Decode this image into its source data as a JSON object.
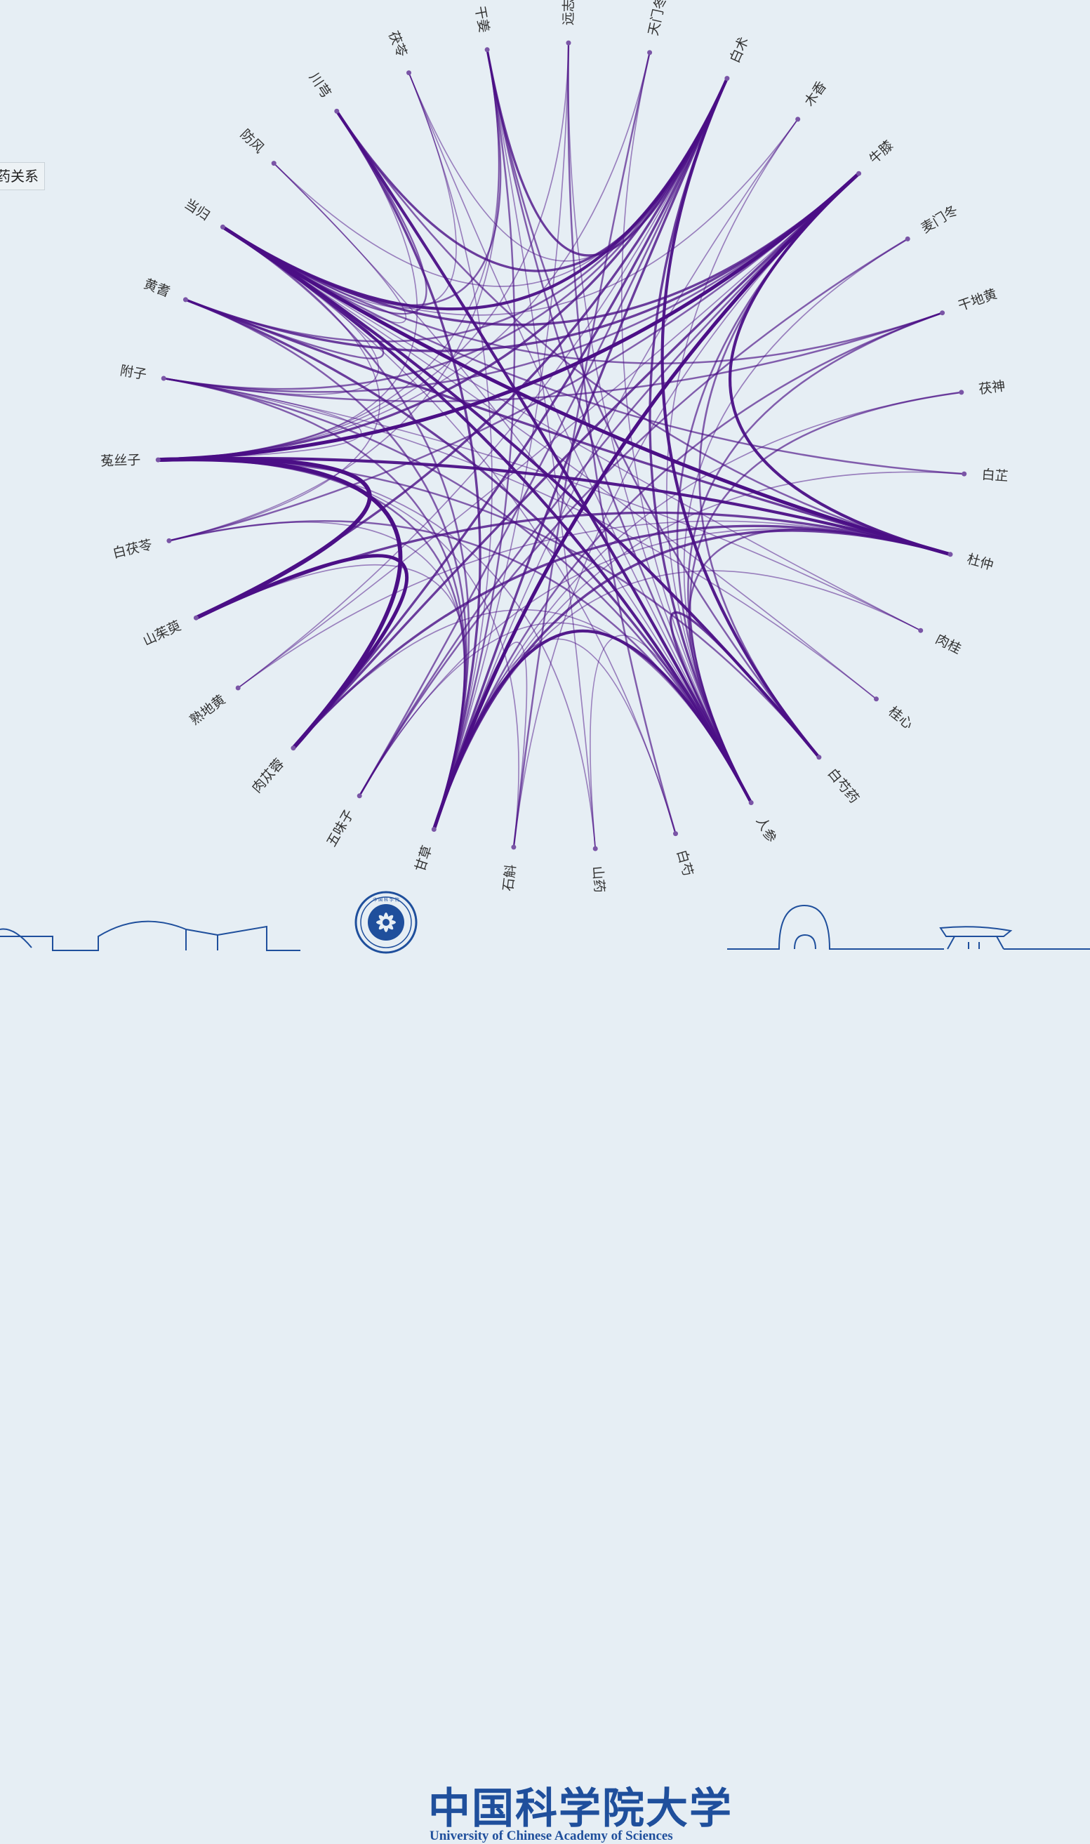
{
  "legend": {
    "label": "药关系"
  },
  "diagram": {
    "type": "chord-network",
    "link_color": "#4b0f86",
    "node_color": "#7a55a6",
    "nodes": [
      "远志",
      "天门冬",
      "白术",
      "木香",
      "牛膝",
      "麦门冬",
      "干地黄",
      "茯神",
      "白芷",
      "杜仲",
      "肉桂",
      "桂心",
      "白芍药",
      "人参",
      "白芍",
      "山药",
      "石斛",
      "甘草",
      "五味子",
      "肉苁蓉",
      "熟地黄",
      "山茱萸",
      "白茯苓",
      "菟丝子",
      "附子",
      "黄耆",
      "当归",
      "防风",
      "川芎",
      "茯苓",
      "干姜"
    ],
    "links": [
      [
        "菟丝子",
        "牛膝",
        5
      ],
      [
        "菟丝子",
        "山茱萸",
        6
      ],
      [
        "菟丝子",
        "肉苁蓉",
        6
      ],
      [
        "菟丝子",
        "杜仲",
        4
      ],
      [
        "菟丝子",
        "白术",
        3
      ],
      [
        "当归",
        "杜仲",
        5
      ],
      [
        "当归",
        "白芍药",
        4
      ],
      [
        "当归",
        "白术",
        4
      ],
      [
        "当归",
        "牛膝",
        3
      ],
      [
        "当归",
        "人参",
        4
      ],
      [
        "川芎",
        "人参",
        4
      ],
      [
        "川芎",
        "白术",
        3
      ],
      [
        "川芎",
        "甘草",
        3
      ],
      [
        "甘草",
        "牛膝",
        5
      ],
      [
        "甘草",
        "白术",
        3
      ],
      [
        "甘草",
        "人参",
        4
      ],
      [
        "甘草",
        "杜仲",
        3
      ],
      [
        "山茱萸",
        "肉苁蓉",
        5
      ],
      [
        "山茱萸",
        "白术",
        3
      ],
      [
        "山茱萸",
        "杜仲",
        3
      ],
      [
        "白术",
        "白芍药",
        4
      ],
      [
        "白术",
        "人参",
        3
      ],
      [
        "白术",
        "干姜",
        3
      ],
      [
        "肉苁蓉",
        "白术",
        3
      ],
      [
        "肉苁蓉",
        "牛膝",
        3
      ],
      [
        "肉苁蓉",
        "杜仲",
        3
      ],
      [
        "黄耆",
        "杜仲",
        3
      ],
      [
        "黄耆",
        "牛膝",
        3
      ],
      [
        "黄耆",
        "白术",
        2
      ],
      [
        "黄耆",
        "人参",
        3
      ],
      [
        "黄耆",
        "甘草",
        2
      ],
      [
        "附子",
        "干地黄",
        2
      ],
      [
        "附子",
        "牛膝",
        2
      ],
      [
        "附子",
        "白术",
        2
      ],
      [
        "附子",
        "甘草",
        2
      ],
      [
        "附子",
        "人参",
        2
      ],
      [
        "杜仲",
        "牛膝",
        4
      ],
      [
        "杜仲",
        "人参",
        2
      ],
      [
        "干地黄",
        "甘草",
        2
      ],
      [
        "干地黄",
        "当归",
        2
      ],
      [
        "干地黄",
        "人参",
        2
      ],
      [
        "干姜",
        "人参",
        2
      ],
      [
        "干姜",
        "甘草",
        2
      ],
      [
        "干姜",
        "当归",
        2
      ],
      [
        "干姜",
        "白芍药",
        2
      ],
      [
        "白茯苓",
        "牛膝",
        2
      ],
      [
        "白茯苓",
        "人参",
        2
      ],
      [
        "白茯苓",
        "甘草",
        1
      ],
      [
        "五味子",
        "白术",
        2
      ],
      [
        "五味子",
        "牛膝",
        2
      ],
      [
        "五味子",
        "人参",
        1
      ],
      [
        "远志",
        "白芍",
        2
      ],
      [
        "远志",
        "甘草",
        1
      ],
      [
        "远志",
        "人参",
        1
      ],
      [
        "茯苓",
        "人参",
        1
      ],
      [
        "茯苓",
        "白术",
        1
      ],
      [
        "茯苓",
        "甘草",
        1
      ],
      [
        "天门冬",
        "石斛",
        2
      ],
      [
        "天门冬",
        "人参",
        1
      ],
      [
        "麦门冬",
        "五味子",
        2
      ],
      [
        "麦门冬",
        "人参",
        1
      ],
      [
        "木香",
        "当归",
        1
      ],
      [
        "木香",
        "甘草",
        1
      ],
      [
        "木香",
        "人参",
        1
      ],
      [
        "防风",
        "当归",
        1
      ],
      [
        "防风",
        "人参",
        1
      ],
      [
        "防风",
        "白术",
        1
      ],
      [
        "白芷",
        "当归",
        2
      ],
      [
        "白芷",
        "甘草",
        1
      ],
      [
        "茯神",
        "人参",
        2
      ],
      [
        "茯神",
        "甘草",
        1
      ],
      [
        "肉桂",
        "附子",
        1
      ],
      [
        "肉桂",
        "当归",
        1
      ],
      [
        "肉桂",
        "甘草",
        1
      ],
      [
        "桂心",
        "附子",
        1
      ],
      [
        "桂心",
        "当归",
        1
      ],
      [
        "熟地黄",
        "白术",
        1
      ],
      [
        "熟地黄",
        "牛膝",
        1
      ],
      [
        "山药",
        "人参",
        1
      ],
      [
        "山药",
        "菟丝子",
        1
      ],
      [
        "山药",
        "干姜",
        1
      ],
      [
        "石斛",
        "牛膝",
        1
      ],
      [
        "石斛",
        "菟丝子",
        1
      ],
      [
        "石斛",
        "甘草",
        1
      ],
      [
        "白芍",
        "甘草",
        1
      ],
      [
        "白芍",
        "当归",
        1
      ],
      [
        "人参",
        "白芍药",
        3
      ],
      [
        "人参",
        "牛膝",
        2
      ],
      [
        "白芍药",
        "牛膝",
        2
      ],
      [
        "白芍药",
        "菟丝子",
        2
      ],
      [
        "干姜",
        "菟丝子",
        1
      ],
      [
        "远志",
        "菟丝子",
        1
      ],
      [
        "天门冬",
        "菟丝子",
        1
      ],
      [
        "茯苓",
        "当归",
        1
      ],
      [
        "川芎",
        "当归",
        2
      ],
      [
        "川芎",
        "杜仲",
        2
      ],
      [
        "川芎",
        "菟丝子",
        1
      ],
      [
        "黄耆",
        "当归",
        2
      ],
      [
        "附子",
        "当归",
        1
      ],
      [
        "附子",
        "菟丝子",
        1
      ],
      [
        "白茯苓",
        "当归",
        1
      ],
      [
        "白茯苓",
        "干姜",
        1
      ],
      [
        "五味子",
        "杜仲",
        1
      ],
      [
        "甘草",
        "菟丝子",
        2
      ],
      [
        "甘草",
        "当归",
        2
      ],
      [
        "肉苁蓉",
        "人参",
        1
      ],
      [
        "山茱萸",
        "甘草",
        1
      ],
      [
        "熟地黄",
        "杜仲",
        1
      ]
    ]
  },
  "footer": {
    "logo_cn": "中国科学院大学",
    "logo_en": "University of  Chinese Academy of Sciences",
    "emblem_text": "中 国 科 学 院"
  }
}
